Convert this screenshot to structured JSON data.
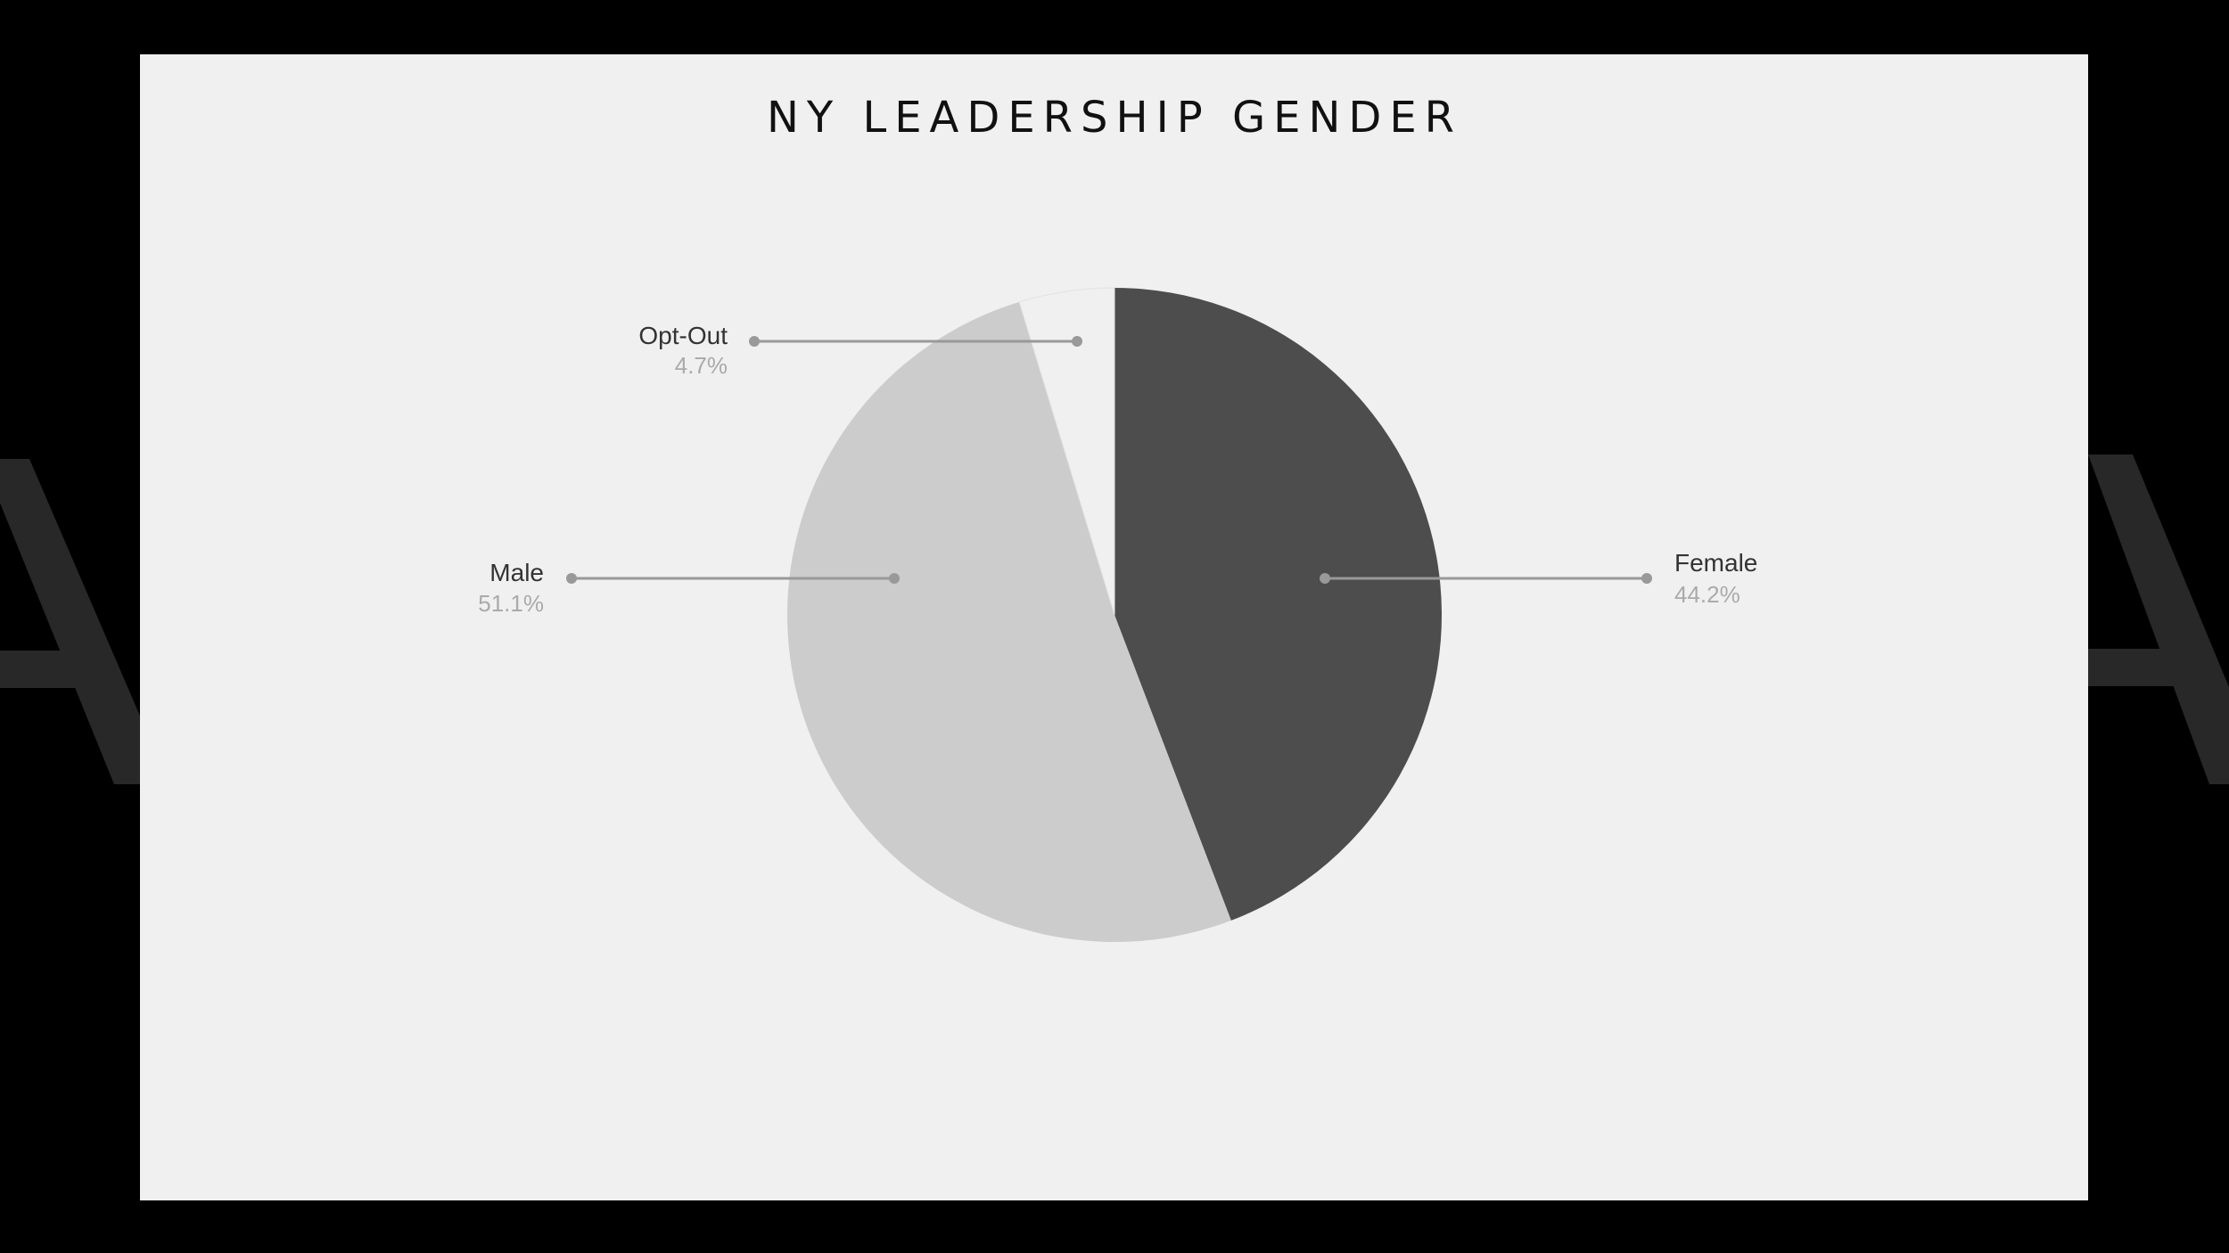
{
  "chart_data": {
    "type": "pie",
    "title": "NY LEADERSHIP GENDER",
    "slices": [
      {
        "label": "Female",
        "value": 44.2,
        "value_label": "44.2%",
        "color": "#4d4d4d"
      },
      {
        "label": "Male",
        "value": 51.1,
        "value_label": "51.1%",
        "color": "#cccccc"
      },
      {
        "label": "Opt-Out",
        "value": 4.7,
        "value_label": "4.7%",
        "color": "#f0f0f0"
      }
    ],
    "start": "top",
    "direction": "clockwise",
    "legend": "none",
    "leader_color": "#999999"
  },
  "colors": {
    "background": "#000000",
    "panel": "#f0f0f0",
    "watermark": "#282828"
  }
}
